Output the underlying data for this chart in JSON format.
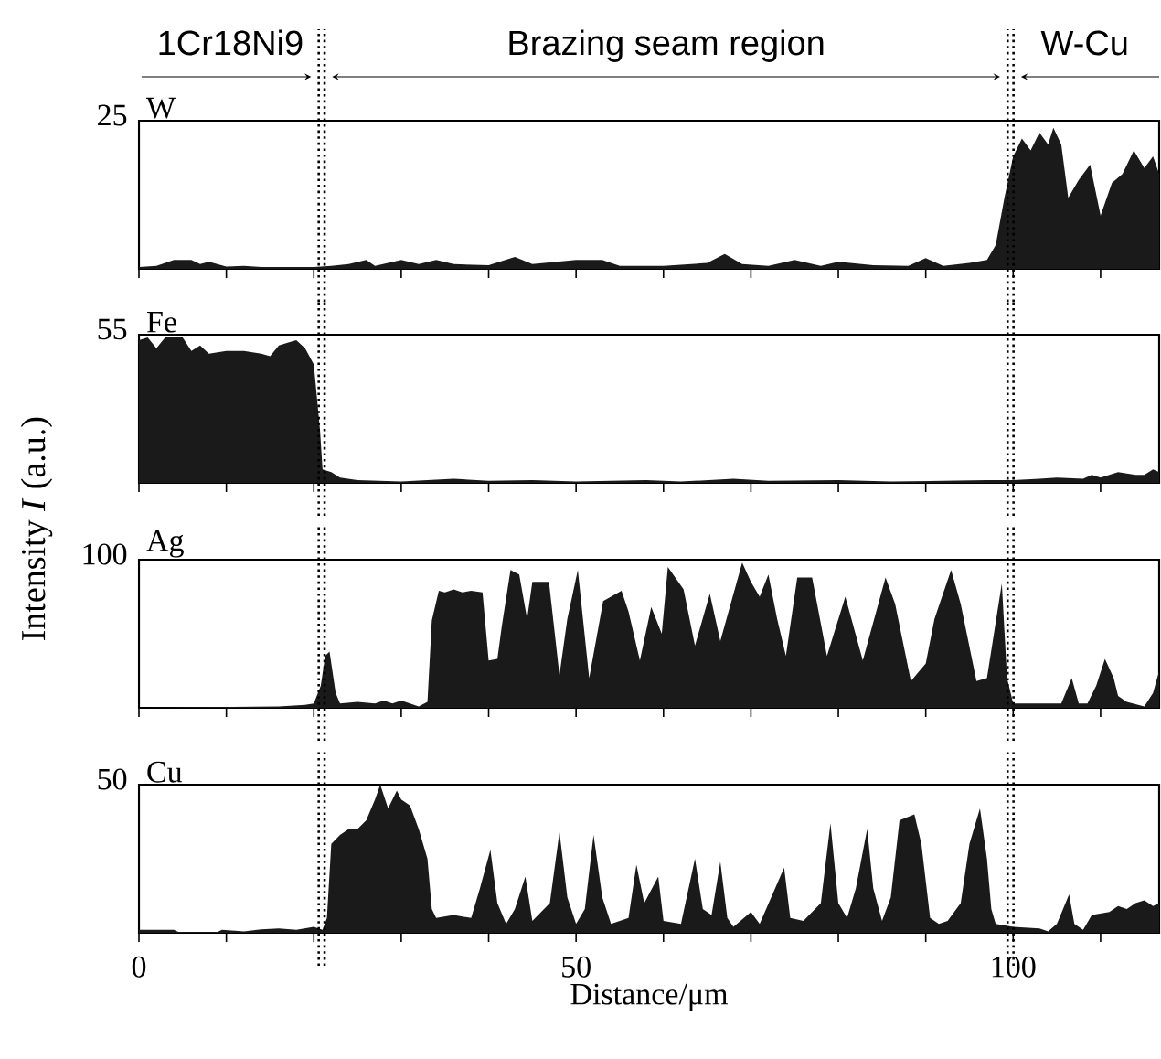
{
  "chart_data": [
    {
      "type": "area",
      "annotations": [
        "1Cr18Ni9",
        "Brazing seam region",
        "W-Cu"
      ],
      "tick_labels": "y",
      "xlim": [
        0,
        116.7
      ],
      "xticks": [
        0,
        {
          "value": 10,
          "label": null
        },
        {
          "value": 20,
          "label": null
        },
        {
          "value": 30,
          "label": null
        },
        {
          "value": 40,
          "label": null
        },
        50,
        {
          "value": 60,
          "label": null
        },
        {
          "value": 70,
          "label": null
        },
        {
          "value": 80,
          "label": null
        },
        {
          "value": 90,
          "label": null
        },
        100,
        {
          "value": 110,
          "label": null
        }
      ],
      "ylim": [
        0,
        25
      ],
      "yticks": [
        25
      ],
      "ref_lines": [
        {
          "axis": "x",
          "value": 20.9,
          "color": "#000000",
          "line_style": "dotted"
        },
        {
          "axis": "x",
          "value": 99.7,
          "color": "#000000",
          "line_style": "dotted"
        }
      ],
      "x": [
        0,
        2,
        4,
        6,
        7,
        8,
        10,
        12,
        14,
        16,
        18,
        20,
        22,
        24,
        26,
        27,
        30,
        32,
        34,
        36,
        40,
        43,
        45,
        50,
        53,
        55,
        60,
        65,
        67,
        69,
        72,
        75,
        78,
        80,
        84,
        88,
        90,
        92,
        95,
        97,
        98,
        99,
        100,
        101,
        102,
        103,
        104,
        104.6,
        105.5,
        106.3,
        107.5,
        108.8,
        110,
        111.3,
        112.5,
        113.8,
        115,
        116,
        116.7
      ],
      "series": [
        {
          "name": "W",
          "color": "#1a1a1a",
          "values": [
            0.3,
            0.5,
            1.5,
            1.5,
            0.8,
            1.2,
            0.4,
            0.5,
            0.3,
            0.3,
            0.3,
            0.3,
            0.5,
            0.8,
            1.5,
            0.5,
            1.5,
            0.8,
            1.5,
            0.8,
            0.6,
            2,
            0.8,
            1.5,
            1.5,
            0.5,
            0.5,
            1,
            2.5,
            0.8,
            0.5,
            1.5,
            0.5,
            1.2,
            0.6,
            0.5,
            1.8,
            0.5,
            1,
            1.5,
            4,
            12,
            19,
            22,
            20,
            23,
            21,
            23.8,
            21,
            12,
            15,
            17.6,
            9,
            14.5,
            16,
            20,
            17,
            19,
            16
          ]
        }
      ]
    },
    {
      "type": "area",
      "ylabel": "Intensity *I* (a.u.)",
      "tick_labels": "y",
      "xlim": [
        0,
        116.7
      ],
      "xticks": [
        0,
        {
          "value": 10,
          "label": null
        },
        {
          "value": 20,
          "label": null
        },
        {
          "value": 30,
          "label": null
        },
        {
          "value": 40,
          "label": null
        },
        50,
        {
          "value": 60,
          "label": null
        },
        {
          "value": 70,
          "label": null
        },
        {
          "value": 80,
          "label": null
        },
        {
          "value": 90,
          "label": null
        },
        100,
        {
          "value": 110,
          "label": null
        }
      ],
      "ylim": [
        0,
        55
      ],
      "yticks": [
        55
      ],
      "ref_lines": [
        {
          "axis": "x",
          "value": 20.9,
          "color": "#000000",
          "line_style": "dotted"
        },
        {
          "axis": "x",
          "value": 99.7,
          "color": "#000000",
          "line_style": "dotted"
        }
      ],
      "x": [
        0,
        1,
        2,
        3,
        5,
        6,
        7,
        8,
        10,
        12,
        14,
        15,
        16,
        17,
        18,
        19,
        20,
        20.7,
        21,
        22,
        23,
        25,
        30,
        36,
        40,
        45,
        50,
        58,
        62,
        68,
        72,
        80,
        86,
        92,
        97,
        100,
        103,
        105,
        108,
        109,
        110,
        111,
        112,
        114,
        115,
        116,
        116.7
      ],
      "series": [
        {
          "name": "Fe",
          "color": "#1a1a1a",
          "values": [
            53,
            54,
            50,
            54,
            54,
            49,
            51,
            48,
            49,
            49,
            48,
            47,
            51,
            52,
            53,
            50,
            44,
            20,
            5,
            4,
            2,
            1,
            0.5,
            1.5,
            0.8,
            1,
            0.5,
            1,
            0.5,
            1.5,
            0.8,
            1,
            0.5,
            0.8,
            1,
            1,
            1.5,
            2,
            1.5,
            3,
            2,
            3,
            4,
            3,
            3,
            5,
            4
          ]
        }
      ]
    },
    {
      "type": "area",
      "tick_labels": "y",
      "xlim": [
        0,
        116.7
      ],
      "xticks": [
        0,
        {
          "value": 10,
          "label": null
        },
        {
          "value": 20,
          "label": null
        },
        {
          "value": 30,
          "label": null
        },
        {
          "value": 40,
          "label": null
        },
        50,
        {
          "value": 60,
          "label": null
        },
        {
          "value": 70,
          "label": null
        },
        {
          "value": 80,
          "label": null
        },
        {
          "value": 90,
          "label": null
        },
        100,
        {
          "value": 110,
          "label": null
        }
      ],
      "ylim": [
        0,
        100
      ],
      "yticks": [
        100
      ],
      "ref_lines": [
        {
          "axis": "x",
          "value": 20.9,
          "color": "#000000",
          "line_style": "dotted"
        },
        {
          "axis": "x",
          "value": 99.7,
          "color": "#000000",
          "line_style": "dotted"
        }
      ],
      "x": [
        0,
        16,
        19,
        20,
        20.8,
        21.3,
        21.8,
        22.5,
        23,
        25,
        27,
        28,
        29,
        30,
        31,
        32,
        33,
        33.5,
        34.3,
        35,
        36,
        37,
        38,
        39.3,
        40,
        41,
        41.5,
        42.5,
        43.5,
        44.4,
        45,
        46.9,
        48.1,
        49,
        50.2,
        51.5,
        53.1,
        55.2,
        56,
        57.3,
        58.6,
        59.8,
        60.5,
        62.3,
        63.6,
        65.3,
        66.5,
        69,
        70,
        71,
        72,
        73,
        74,
        75.3,
        77,
        78.7,
        80.8,
        82.8,
        85.4,
        86.5,
        88.3,
        90,
        91,
        92.9,
        94,
        95.8,
        97,
        98.7,
        99.3,
        100,
        105.5,
        106.7,
        107.5,
        108.5,
        109.5,
        110.5,
        111.5,
        112,
        113,
        115,
        116,
        116.7
      ],
      "series": [
        {
          "name": "Ag",
          "color": "#1a1a1a",
          "values": [
            0,
            1,
            2,
            3,
            15,
            35,
            38,
            10,
            3,
            4,
            3,
            5,
            3,
            5,
            3,
            1,
            4,
            59,
            79,
            78,
            80,
            78,
            79,
            78,
            32,
            33,
            55,
            93,
            90,
            60,
            85,
            85,
            22,
            60,
            93,
            20,
            72,
            79,
            65,
            32,
            68,
            50,
            95,
            80,
            42,
            77,
            45,
            98,
            85,
            75,
            90,
            60,
            35,
            88,
            88,
            35,
            75,
            32,
            88,
            70,
            18,
            30,
            60,
            93,
            70,
            18,
            20,
            84,
            20,
            3,
            3,
            20,
            3,
            3,
            15,
            33,
            20,
            8,
            4,
            1,
            10,
            25
          ]
        }
      ]
    },
    {
      "type": "area",
      "xlabel": "Distance/μm",
      "xlim": [
        0,
        116.7
      ],
      "xticks": [
        0,
        {
          "value": 10,
          "label": null
        },
        {
          "value": 20,
          "label": null
        },
        {
          "value": 30,
          "label": null
        },
        {
          "value": 40,
          "label": null
        },
        50,
        {
          "value": 60,
          "label": null
        },
        {
          "value": 70,
          "label": null
        },
        {
          "value": 80,
          "label": null
        },
        {
          "value": 90,
          "label": null
        },
        100,
        {
          "value": 110,
          "label": null
        }
      ],
      "ylim": [
        0,
        50
      ],
      "yticks": [
        50
      ],
      "ref_lines": [
        {
          "axis": "x",
          "value": 20.9,
          "color": "#000000",
          "line_style": "dotted"
        },
        {
          "axis": "x",
          "value": 99.7,
          "color": "#000000",
          "line_style": "dotted"
        }
      ],
      "x": [
        0,
        4,
        4.5,
        9,
        9.5,
        12,
        14,
        16,
        18,
        20,
        21,
        21.5,
        22,
        23,
        24,
        25,
        26,
        27,
        27.6,
        28.5,
        29.5,
        30,
        31,
        32,
        33,
        33.5,
        34,
        36,
        38,
        39,
        40.2,
        41,
        42,
        43,
        44.2,
        45,
        47,
        48.1,
        49,
        50,
        51,
        52,
        53,
        54,
        56,
        56.9,
        57.8,
        59.4,
        60,
        62,
        63.6,
        64.5,
        65.5,
        66.5,
        67.3,
        68,
        70,
        71,
        73.8,
        74.5,
        76,
        78,
        79.1,
        80,
        81,
        82,
        83.3,
        84,
        85,
        86,
        87,
        88.7,
        89.5,
        90.5,
        91.5,
        92.5,
        94,
        95,
        96.2,
        97,
        97.5,
        98,
        100,
        103,
        104,
        105,
        106.4,
        107,
        108,
        109,
        111,
        112,
        113,
        114,
        115,
        116,
        116.7
      ],
      "series": [
        {
          "name": "Cu",
          "color": "#1a1a1a",
          "values": [
            1,
            1,
            0.3,
            0.3,
            1,
            0.5,
            1.2,
            1.5,
            1,
            2,
            1,
            5,
            30,
            33,
            35,
            35,
            38,
            45,
            50,
            42,
            48,
            45,
            43,
            35,
            25,
            8,
            5,
            6,
            5,
            15,
            28,
            10,
            3,
            8,
            19,
            4,
            10,
            34,
            12,
            3,
            8,
            33,
            12,
            3,
            5,
            23,
            10,
            19,
            4,
            3,
            25,
            8,
            6,
            24,
            5,
            2,
            7,
            3,
            22,
            5,
            4,
            10,
            37,
            10,
            5,
            15,
            35,
            15,
            4,
            12,
            38,
            40,
            30,
            5,
            3,
            4,
            10,
            30,
            42,
            25,
            8,
            3,
            2,
            1.5,
            0.5,
            3,
            13,
            3,
            1,
            6,
            7,
            9,
            8,
            10,
            11,
            9,
            10
          ]
        }
      ]
    }
  ]
}
